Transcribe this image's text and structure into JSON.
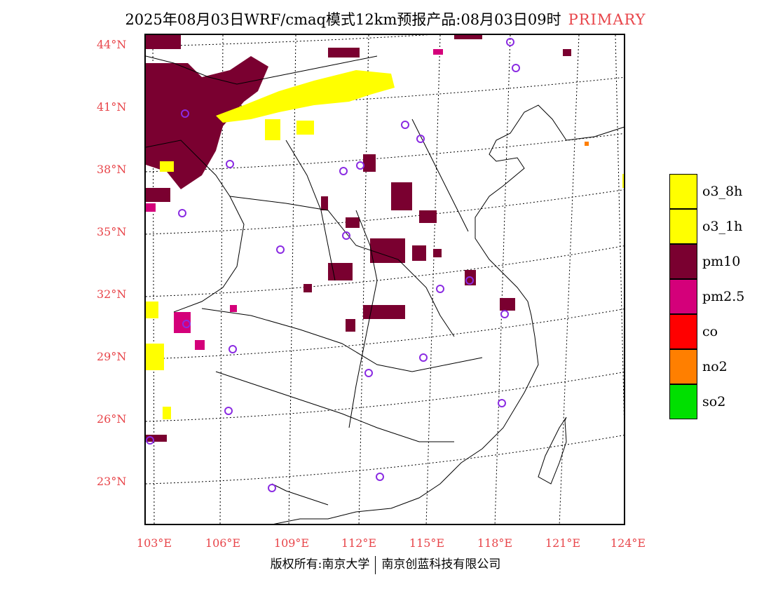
{
  "title": {
    "text": "2025年08月03日WRF/cmaq模式12km预报产品:08月03日09时",
    "tag": "PRIMARY"
  },
  "axes": {
    "lat_labels": [
      "44°N",
      "41°N",
      "38°N",
      "35°N",
      "32°N",
      "29°N",
      "26°N",
      "23°N"
    ],
    "lon_labels": [
      "103°E",
      "106°E",
      "109°E",
      "112°E",
      "115°E",
      "118°E",
      "121°E",
      "124°E"
    ],
    "label_color": "#e8454a"
  },
  "legend": [
    {
      "label": "o3_8h",
      "color": "#ffff00"
    },
    {
      "label": "o3_1h",
      "color": "#ffff00"
    },
    {
      "label": "pm10",
      "color": "#7a0030"
    },
    {
      "label": "pm2.5",
      "color": "#d4007a"
    },
    {
      "label": "co",
      "color": "#ff0000"
    },
    {
      "label": "no2",
      "color": "#ff7f00"
    },
    {
      "label": "so2",
      "color": "#00e000"
    }
  ],
  "footer": {
    "left": "版权所有:南京大学",
    "right": "南京创蓝科技有限公司"
  },
  "colors": {
    "pm10": "#7a0030",
    "pm25": "#d4007a",
    "o3": "#ffff00",
    "no2": "#ff7f00",
    "station_marker": "#8a2be2"
  }
}
